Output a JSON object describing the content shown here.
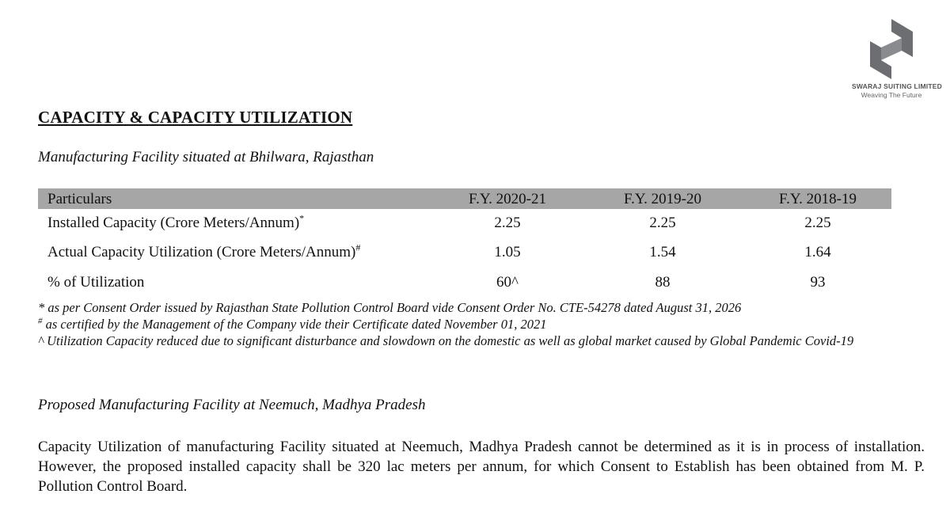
{
  "logo": {
    "company": "SWARAJ SUITING LIMITED",
    "tagline": "Weaving The Future",
    "color": "#6d6e71"
  },
  "title": "CAPACITY & CAPACITY UTILIZATION",
  "subtitle": "Manufacturing Facility situated at Bhilwara, Rajasthan",
  "table": {
    "header_bg": "#a6a6a6",
    "headers": [
      "Particulars",
      "F.Y. 2020-21",
      "F.Y. 2019-20",
      "F.Y. 2018-19"
    ],
    "rows": [
      {
        "label": "Installed Capacity (Crore Meters/Annum)",
        "mark": "*",
        "values": [
          "2.25",
          "2.25",
          "2.25"
        ]
      },
      {
        "label": "Actual Capacity Utilization (Crore Meters/Annum)",
        "mark": "#",
        "values": [
          "1.05",
          "1.54",
          "1.64"
        ]
      },
      {
        "label": "% of Utilization",
        "mark": "",
        "values": [
          "60^",
          "88",
          "93"
        ]
      }
    ]
  },
  "notes": [
    {
      "mark": "",
      "text": "* as per Consent Order issued by Rajasthan State Pollution Control Board vide Consent Order No. CTE-54278 dated August 31, 2026"
    },
    {
      "mark": "#",
      "text": " as certified by the Management of the Company vide their Certificate dated November 01, 2021"
    },
    {
      "mark": "",
      "text": "^ Utilization Capacity reduced due to significant disturbance and slowdown on the domestic as well as global market caused by Global Pandemic Covid-19"
    }
  ],
  "subtitle2": "Proposed Manufacturing Facility at Neemuch, Madhya Pradesh",
  "paragraph": "Capacity Utilization of manufacturing Facility situated at Neemuch, Madhya Pradesh cannot be determined as it is in process of installation. However, the proposed installed capacity shall be 320 lac meters per annum, for which Consent to Establish has been obtained from M. P. Pollution Control Board."
}
